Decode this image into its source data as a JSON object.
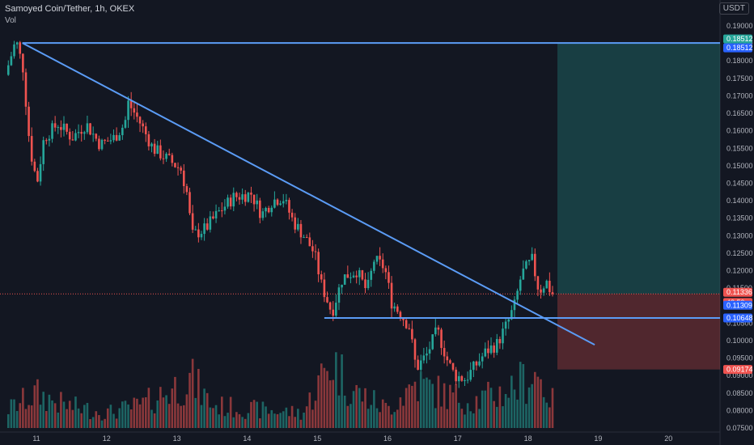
{
  "header": {
    "title": "Samoyed Coin/Tether, 1h, OKEX",
    "volume_label": "Vol",
    "currency": "USDT"
  },
  "chart_data": {
    "type": "candlestick",
    "ylim": [
      0.075,
      0.19
    ],
    "y_ticks": [
      "0.19000",
      "0.18500",
      "0.18000",
      "0.17500",
      "0.17000",
      "0.16500",
      "0.16000",
      "0.15500",
      "0.15000",
      "0.14500",
      "0.14000",
      "0.13500",
      "0.13000",
      "0.12500",
      "0.12000",
      "0.11500",
      "0.11000",
      "0.10500",
      "0.10000",
      "0.09500",
      "0.09000",
      "0.08500",
      "0.08000",
      "0.07500"
    ],
    "x_ticks": [
      "11",
      "12",
      "13",
      "14",
      "15",
      "16",
      "17",
      "18",
      "19",
      "20"
    ],
    "price_tags": [
      {
        "label": "0.18512",
        "value": 0.18512,
        "color": "#26a69a"
      },
      {
        "label": "0.18512",
        "value": 0.18512,
        "color": "#2962ff"
      },
      {
        "label": "0.11336",
        "value": 0.11336,
        "color": "#ef5350"
      },
      {
        "label": "48:59",
        "value": 0.1125,
        "color": "#ef5350"
      },
      {
        "label": "0.11309",
        "value": 0.1115,
        "color": "#2962ff"
      },
      {
        "label": "0.10648",
        "value": 0.10648,
        "color": "#2962ff"
      },
      {
        "label": "0.09174",
        "value": 0.09174,
        "color": "#ef5350"
      }
    ],
    "position": {
      "entry": 0.11336,
      "target": 0.18512,
      "stop": 0.09174
    },
    "lines": [
      {
        "name": "resistance-horizontal",
        "from": [
          10.8,
          0.18512
        ],
        "to": [
          20.8,
          0.18512
        ]
      },
      {
        "name": "descending-trendline",
        "from": [
          10.8,
          0.18512
        ],
        "to": [
          18.95,
          0.0988
        ]
      },
      {
        "name": "support-horizontal",
        "from": [
          15.1,
          0.10648
        ],
        "to": [
          20.8,
          0.10648
        ]
      }
    ],
    "path_points": [
      [
        10.6,
        0.176
      ],
      [
        10.75,
        0.186
      ],
      [
        10.85,
        0.178
      ],
      [
        10.95,
        0.155
      ],
      [
        11.05,
        0.145
      ],
      [
        11.15,
        0.158
      ],
      [
        11.35,
        0.162
      ],
      [
        11.55,
        0.158
      ],
      [
        11.75,
        0.162
      ],
      [
        11.95,
        0.156
      ],
      [
        12.15,
        0.158
      ],
      [
        12.3,
        0.162
      ],
      [
        12.35,
        0.168
      ],
      [
        12.5,
        0.163
      ],
      [
        12.7,
        0.155
      ],
      [
        12.9,
        0.152
      ],
      [
        13.1,
        0.149
      ],
      [
        13.2,
        0.141
      ],
      [
        13.25,
        0.13
      ],
      [
        13.45,
        0.132
      ],
      [
        13.65,
        0.137
      ],
      [
        13.85,
        0.141
      ],
      [
        14.1,
        0.142
      ],
      [
        14.25,
        0.136
      ],
      [
        14.4,
        0.14
      ],
      [
        14.55,
        0.141
      ],
      [
        14.7,
        0.134
      ],
      [
        14.85,
        0.13
      ],
      [
        15.0,
        0.125
      ],
      [
        15.1,
        0.116
      ],
      [
        15.25,
        0.108
      ],
      [
        15.4,
        0.118
      ],
      [
        15.6,
        0.12
      ],
      [
        15.75,
        0.114
      ],
      [
        15.85,
        0.123
      ],
      [
        16.0,
        0.121
      ],
      [
        16.1,
        0.111
      ],
      [
        16.25,
        0.107
      ],
      [
        16.35,
        0.104
      ],
      [
        16.45,
        0.092
      ],
      [
        16.6,
        0.096
      ],
      [
        16.75,
        0.103
      ],
      [
        16.9,
        0.094
      ],
      [
        17.0,
        0.09
      ],
      [
        17.15,
        0.089
      ],
      [
        17.3,
        0.093
      ],
      [
        17.45,
        0.097
      ],
      [
        17.6,
        0.099
      ],
      [
        17.75,
        0.105
      ],
      [
        17.85,
        0.11
      ],
      [
        17.95,
        0.119
      ],
      [
        18.1,
        0.123
      ],
      [
        18.2,
        0.114
      ],
      [
        18.3,
        0.117
      ],
      [
        18.38,
        0.1134
      ]
    ],
    "volume_profile": [
      [
        10.6,
        0.25
      ],
      [
        11.0,
        0.45
      ],
      [
        11.4,
        0.3
      ],
      [
        12.0,
        0.2
      ],
      [
        12.5,
        0.3
      ],
      [
        13.2,
        0.65
      ],
      [
        13.5,
        0.3
      ],
      [
        14.0,
        0.25
      ],
      [
        14.8,
        0.2
      ],
      [
        15.2,
        0.9
      ],
      [
        15.5,
        0.5
      ],
      [
        16.0,
        0.25
      ],
      [
        16.4,
        0.6
      ],
      [
        16.8,
        0.45
      ],
      [
        17.2,
        0.35
      ],
      [
        17.6,
        0.45
      ],
      [
        17.9,
        0.6
      ],
      [
        18.1,
        0.75
      ],
      [
        18.38,
        0.3
      ]
    ]
  }
}
